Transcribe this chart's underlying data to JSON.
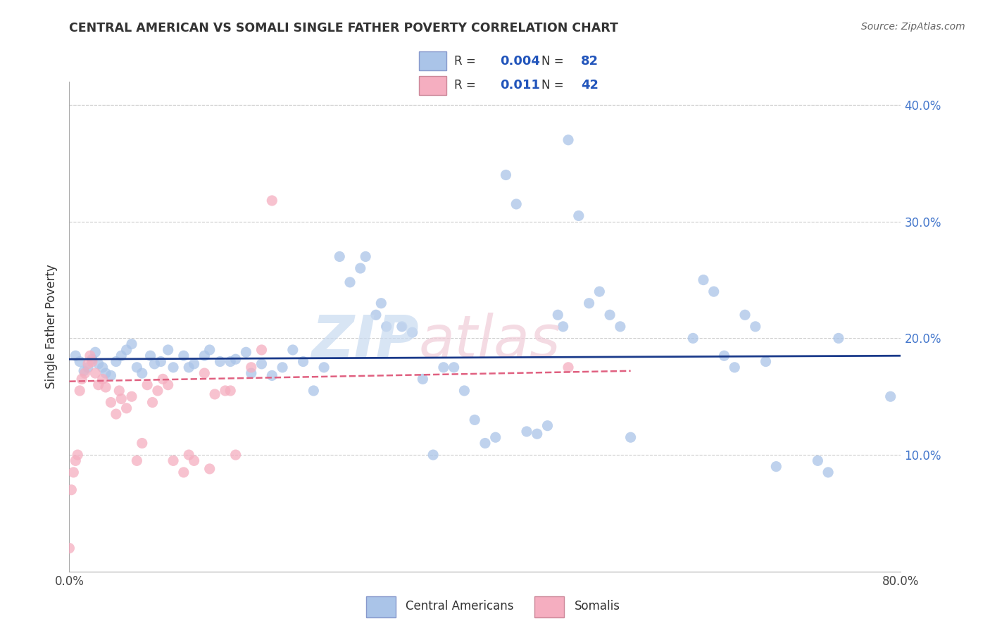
{
  "title": "CENTRAL AMERICAN VS SOMALI SINGLE FATHER POVERTY CORRELATION CHART",
  "source": "Source: ZipAtlas.com",
  "ylabel": "Single Father Poverty",
  "legend_labels": [
    "Central Americans",
    "Somalis"
  ],
  "legend_r_n": [
    {
      "R": "0.004",
      "N": "82"
    },
    {
      "R": "0.011",
      "N": "42"
    }
  ],
  "blue_color": "#aac4e8",
  "pink_color": "#f5aec0",
  "blue_line_color": "#1a3a8a",
  "pink_line_color": "#e06080",
  "watermark_zip": "ZIP",
  "watermark_atlas": "atlas",
  "xlim": [
    0.0,
    0.8
  ],
  "ylim": [
    0.0,
    0.42
  ],
  "xticks": [
    0.0,
    0.1,
    0.2,
    0.3,
    0.4,
    0.5,
    0.6,
    0.7,
    0.8
  ],
  "yticks": [
    0.0,
    0.1,
    0.2,
    0.3,
    0.4
  ],
  "xtick_labels": [
    "0.0%",
    "",
    "",
    "",
    "",
    "",
    "",
    "",
    "80.0%"
  ],
  "ytick_right_labels": [
    "",
    "10.0%",
    "20.0%",
    "30.0%",
    "40.0%"
  ],
  "background_color": "#ffffff",
  "grid_color": "#cccccc",
  "blue_x": [
    0.006,
    0.01,
    0.014,
    0.018,
    0.022,
    0.025,
    0.028,
    0.032,
    0.035,
    0.04,
    0.045,
    0.05,
    0.055,
    0.06,
    0.065,
    0.07,
    0.078,
    0.082,
    0.088,
    0.095,
    0.1,
    0.11,
    0.115,
    0.12,
    0.13,
    0.135,
    0.145,
    0.155,
    0.16,
    0.17,
    0.175,
    0.185,
    0.195,
    0.205,
    0.215,
    0.225,
    0.235,
    0.245,
    0.26,
    0.27,
    0.28,
    0.285,
    0.295,
    0.3,
    0.305,
    0.32,
    0.33,
    0.34,
    0.35,
    0.36,
    0.37,
    0.38,
    0.39,
    0.4,
    0.41,
    0.42,
    0.43,
    0.44,
    0.45,
    0.46,
    0.47,
    0.475,
    0.48,
    0.49,
    0.5,
    0.51,
    0.52,
    0.53,
    0.54,
    0.6,
    0.61,
    0.62,
    0.63,
    0.64,
    0.65,
    0.66,
    0.67,
    0.68,
    0.72,
    0.73,
    0.74,
    0.79
  ],
  "blue_y": [
    0.185,
    0.18,
    0.172,
    0.175,
    0.182,
    0.188,
    0.178,
    0.175,
    0.17,
    0.168,
    0.18,
    0.185,
    0.19,
    0.195,
    0.175,
    0.17,
    0.185,
    0.178,
    0.18,
    0.19,
    0.175,
    0.185,
    0.175,
    0.178,
    0.185,
    0.19,
    0.18,
    0.18,
    0.182,
    0.188,
    0.17,
    0.178,
    0.168,
    0.175,
    0.19,
    0.18,
    0.155,
    0.175,
    0.27,
    0.248,
    0.26,
    0.27,
    0.22,
    0.23,
    0.21,
    0.21,
    0.205,
    0.165,
    0.1,
    0.175,
    0.175,
    0.155,
    0.13,
    0.11,
    0.115,
    0.34,
    0.315,
    0.12,
    0.118,
    0.125,
    0.22,
    0.21,
    0.37,
    0.305,
    0.23,
    0.24,
    0.22,
    0.21,
    0.115,
    0.2,
    0.25,
    0.24,
    0.185,
    0.175,
    0.22,
    0.21,
    0.18,
    0.09,
    0.095,
    0.085,
    0.2,
    0.15
  ],
  "pink_x": [
    0.0,
    0.002,
    0.004,
    0.006,
    0.008,
    0.01,
    0.012,
    0.015,
    0.018,
    0.02,
    0.022,
    0.025,
    0.028,
    0.032,
    0.035,
    0.04,
    0.045,
    0.048,
    0.05,
    0.055,
    0.06,
    0.065,
    0.07,
    0.075,
    0.08,
    0.085,
    0.09,
    0.095,
    0.1,
    0.11,
    0.115,
    0.12,
    0.13,
    0.135,
    0.14,
    0.15,
    0.155,
    0.16,
    0.175,
    0.185,
    0.195,
    0.48
  ],
  "pink_y": [
    0.02,
    0.07,
    0.085,
    0.095,
    0.1,
    0.155,
    0.165,
    0.17,
    0.178,
    0.185,
    0.18,
    0.17,
    0.16,
    0.165,
    0.158,
    0.145,
    0.135,
    0.155,
    0.148,
    0.14,
    0.15,
    0.095,
    0.11,
    0.16,
    0.145,
    0.155,
    0.165,
    0.16,
    0.095,
    0.085,
    0.1,
    0.095,
    0.17,
    0.088,
    0.152,
    0.155,
    0.155,
    0.1,
    0.175,
    0.19,
    0.318,
    0.175
  ],
  "blue_trend_x": [
    0.0,
    0.8
  ],
  "blue_trend_y": [
    0.182,
    0.185
  ],
  "pink_trend_x": [
    0.0,
    0.54
  ],
  "pink_trend_y": [
    0.163,
    0.172
  ]
}
